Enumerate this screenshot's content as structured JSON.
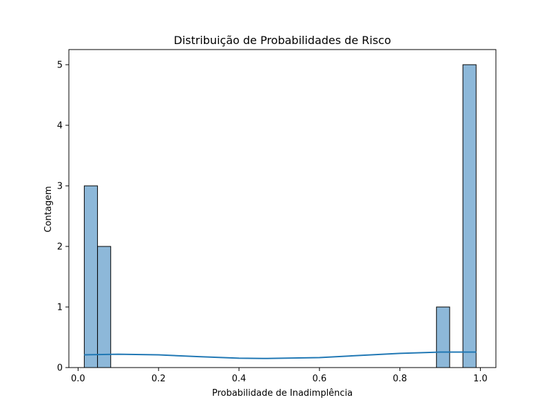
{
  "chart_data": {
    "type": "bar",
    "title": "Distribuição de Probabilidades de Risco",
    "xlabel": "Probabilidade de Inadimplência",
    "ylabel": "Contagem",
    "xlim": [
      -0.0229,
      1.0386
    ],
    "ylim": [
      0,
      5.25
    ],
    "xticks": [
      0.0,
      0.2,
      0.4,
      0.6,
      0.8,
      1.0
    ],
    "xtick_labels": [
      "0.0",
      "0.2",
      "0.4",
      "0.6",
      "0.8",
      "1.0"
    ],
    "yticks": [
      0,
      1,
      2,
      3,
      4,
      5
    ],
    "ytick_labels": [
      "0",
      "1",
      "2",
      "3",
      "4",
      "5"
    ],
    "bins": [
      {
        "start": 0.0154,
        "end": 0.0483,
        "count": 3
      },
      {
        "start": 0.0483,
        "end": 0.0811,
        "count": 2
      },
      {
        "start": 0.8909,
        "end": 0.9237,
        "count": 1
      },
      {
        "start": 0.9566,
        "end": 0.9894,
        "count": 5
      }
    ],
    "kde_curve": {
      "x": [
        0.015,
        0.1,
        0.2,
        0.3,
        0.4,
        0.47,
        0.6,
        0.7,
        0.8,
        0.9,
        0.99
      ],
      "y": [
        0.21,
        0.22,
        0.21,
        0.18,
        0.155,
        0.15,
        0.165,
        0.2,
        0.235,
        0.255,
        0.255
      ]
    },
    "grid": false,
    "colors": {
      "bar_fill": "#8db8d9",
      "bar_edge": "#000000",
      "kde_line": "#1f77b4"
    }
  }
}
